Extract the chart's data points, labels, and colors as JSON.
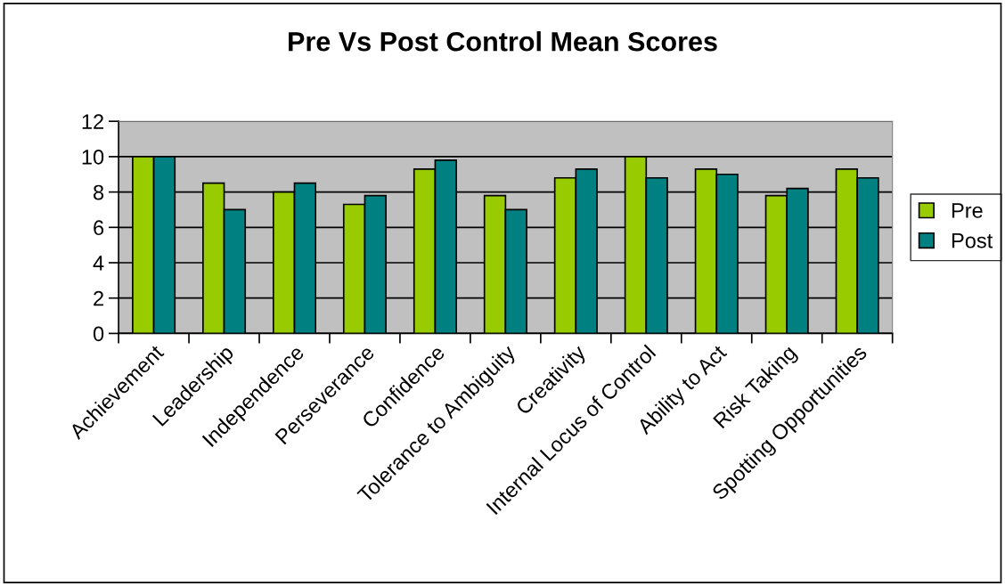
{
  "chart_data": {
    "type": "bar",
    "title": "Pre Vs Post Control Mean Scores",
    "categories": [
      "Achievement",
      "Leadership",
      "Independence",
      "Perseverance",
      "Confidence",
      "Tolerance to Ambiguity",
      "Creativity",
      "Internal Locus of Control",
      "Ability to Act",
      "Risk Taking",
      "Spotting Opportunities"
    ],
    "series": [
      {
        "name": "Pre",
        "color": "#99cc00",
        "values": [
          10,
          8.5,
          8,
          7.3,
          9.3,
          7.8,
          8.8,
          10,
          9.3,
          7.8,
          9.3
        ]
      },
      {
        "name": "Post",
        "color": "#008080",
        "values": [
          10,
          7,
          8.5,
          7.8,
          9.8,
          7,
          9.3,
          8.8,
          9,
          8.2,
          8.8
        ]
      }
    ],
    "ylim": [
      0,
      12
    ],
    "yticks": [
      0,
      2,
      4,
      6,
      8,
      10,
      12
    ],
    "grid": "y",
    "legend": "right"
  }
}
